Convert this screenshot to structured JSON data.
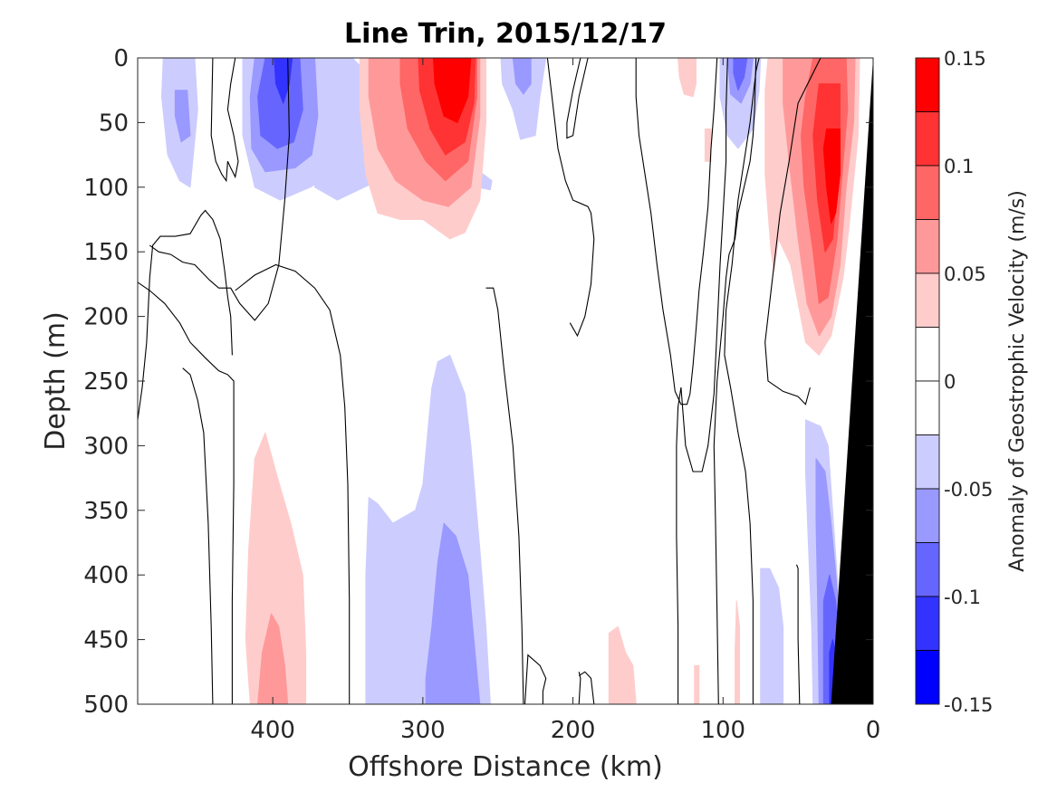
{
  "chart_data": {
    "type": "heatmap",
    "subtype": "filled contour section",
    "title": "Line Trin, 2015/12/17",
    "xlabel": "Offshore Distance (km)",
    "ylabel": "Depth (m)",
    "colorbar_label": "Anomaly of Geostrophic Velocity (m/s)",
    "xlim": [
      490,
      0
    ],
    "x_reversed": true,
    "ylim": [
      0,
      500
    ],
    "y_reversed": true,
    "x_ticks": [
      400,
      300,
      200,
      100,
      0
    ],
    "y_ticks": [
      0,
      50,
      100,
      150,
      200,
      250,
      300,
      350,
      400,
      450,
      500
    ],
    "color_levels": [
      -0.15,
      -0.125,
      -0.1,
      -0.075,
      -0.05,
      -0.025,
      0,
      0.025,
      0.05,
      0.075,
      0.1,
      0.125,
      0.15
    ],
    "colorbar_ticks": [
      0.15,
      0.1,
      0.05,
      0,
      -0.05,
      -0.1,
      -0.15
    ],
    "colorbar_tick_labels": [
      "0.15",
      "0.1",
      "0.05",
      "0",
      "-0.05",
      "-0.1",
      "-0.15"
    ],
    "colorbar_colors": [
      "#ff0000",
      "#ff3333",
      "#ff6666",
      "#ff9999",
      "#ffcccc",
      "#ffffff",
      "#ffffff",
      "#ccccff",
      "#9999ff",
      "#6666ff",
      "#3333ff",
      "#0000ff"
    ],
    "features": [
      {
        "name": "blue core, upper",
        "x_center": 395,
        "depth_top": 0,
        "depth_bottom": 110,
        "peak": -0.1
      },
      {
        "name": "red core, upper",
        "x_center": 280,
        "depth_top": 0,
        "depth_bottom": 140,
        "peak": 0.15
      },
      {
        "name": "blue patch, upper",
        "x_center": 88,
        "depth_top": 0,
        "depth_bottom": 60,
        "peak": -0.075
      },
      {
        "name": "red coastal jet",
        "x_center": 20,
        "depth_top": 0,
        "depth_bottom": 230,
        "peak": 0.15
      },
      {
        "name": "red patch, deep",
        "x_center": 400,
        "depth_top": 290,
        "depth_bottom": 500,
        "peak": 0.05
      },
      {
        "name": "blue patch, deep",
        "x_center": 285,
        "depth_top": 230,
        "depth_bottom": 500,
        "peak": -0.05
      },
      {
        "name": "blue coastal undercurrent",
        "x_center": 22,
        "depth_top": 280,
        "depth_bottom": 500,
        "peak": -0.1
      }
    ],
    "bathymetry_mask": {
      "color": "#000000",
      "points_km_m": [
        [
          0,
          0
        ],
        [
          0,
          500
        ],
        [
          28,
          500
        ]
      ]
    }
  }
}
